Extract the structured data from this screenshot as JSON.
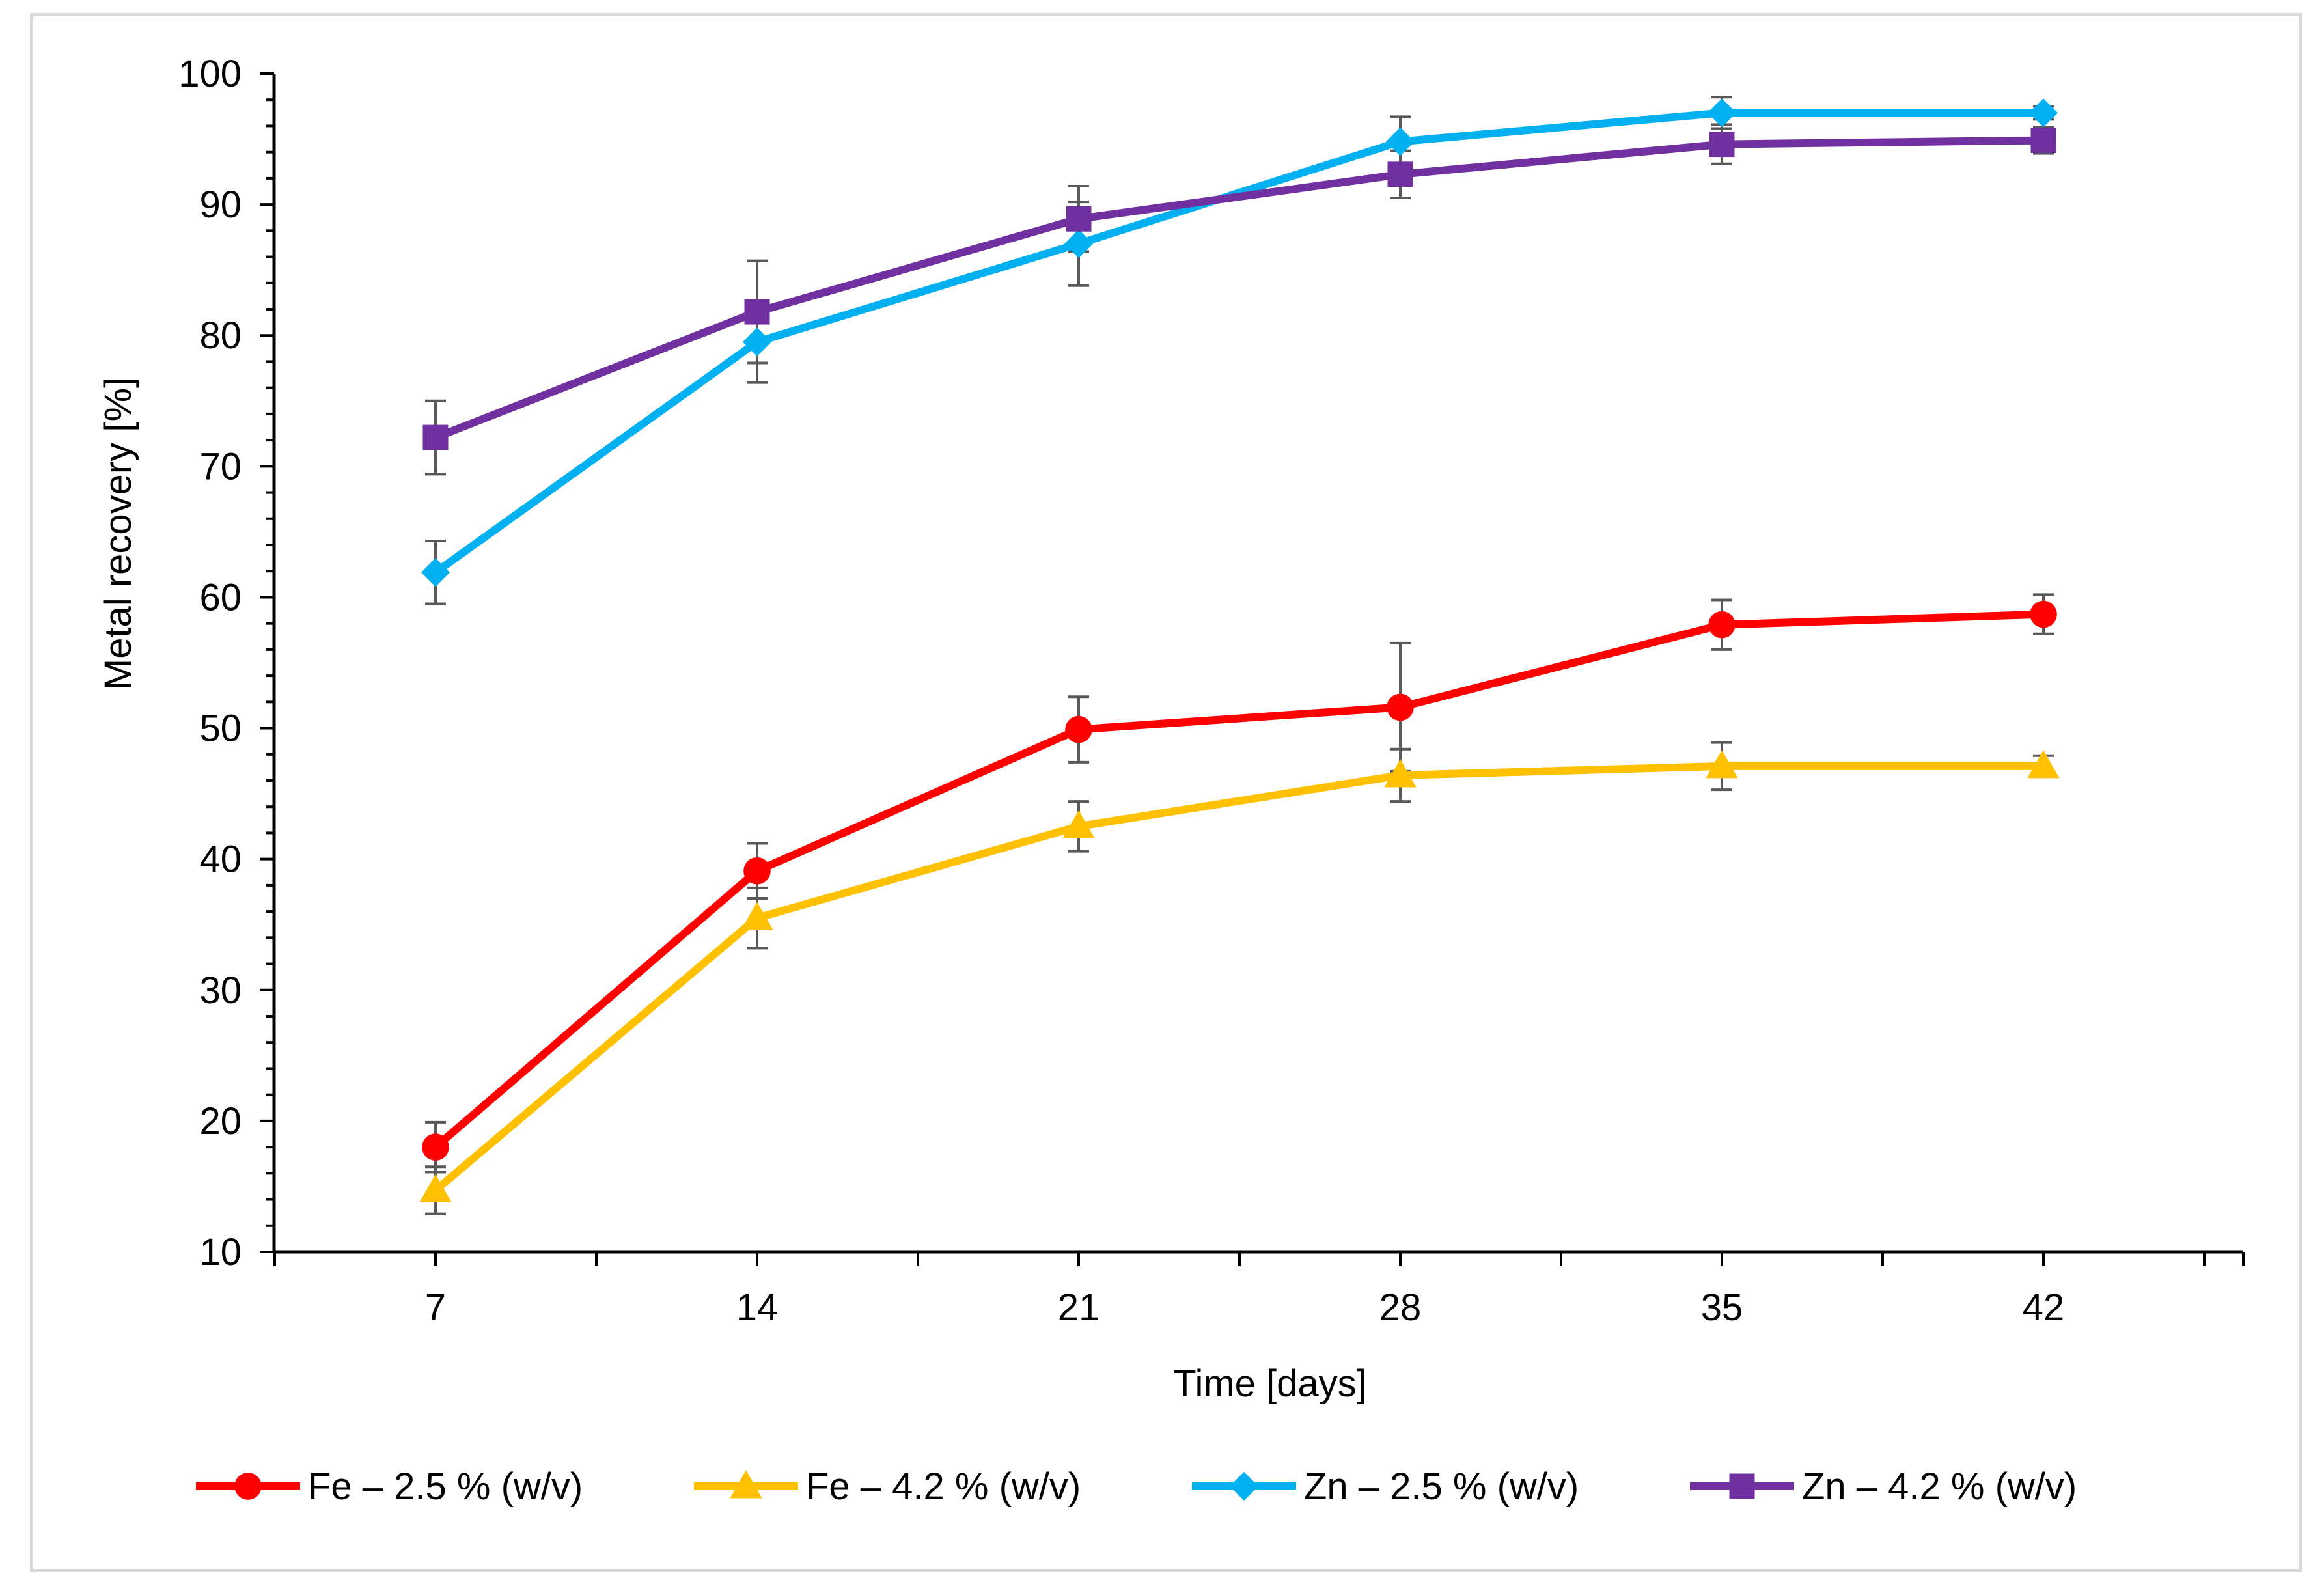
{
  "chart_data": {
    "type": "line",
    "title": "",
    "xlabel": "Time [days]",
    "ylabel": "Metal recovery [%]",
    "categories": [
      "7",
      "14",
      "21",
      "28",
      "35",
      "42"
    ],
    "x": [
      7,
      14,
      21,
      28,
      35,
      42
    ],
    "ylim": [
      10,
      100
    ],
    "yticks": [
      10,
      20,
      30,
      40,
      50,
      60,
      70,
      80,
      90,
      100
    ],
    "grid": false,
    "legend_position": "bottom",
    "error_bar_color": "#595959",
    "series": [
      {
        "name": "Fe – 2.5 % (w/v)",
        "color": "#ff0000",
        "marker": "circle",
        "values": [
          18.0,
          39.1,
          49.9,
          51.6,
          57.9,
          58.7
        ],
        "errors": [
          1.9,
          2.1,
          2.5,
          4.9,
          1.9,
          1.5
        ]
      },
      {
        "name": "Fe – 4.2 % (w/v)",
        "color": "#ffc000",
        "marker": "triangle",
        "values": [
          14.7,
          35.5,
          42.5,
          46.4,
          47.1,
          47.1
        ],
        "errors": [
          1.8,
          2.3,
          1.9,
          2.0,
          1.8,
          0.8
        ]
      },
      {
        "name": "Zn – 2.5 % (w/v)",
        "color": "#00b0f0",
        "marker": "diamond",
        "values": [
          61.9,
          79.5,
          87.0,
          94.8,
          97.0,
          97.0
        ],
        "errors": [
          2.4,
          3.1,
          3.2,
          1.9,
          1.2,
          0.5
        ]
      },
      {
        "name": "Zn – 4.2 % (w/v)",
        "color": "#7030a0",
        "marker": "square",
        "values": [
          72.2,
          81.8,
          88.9,
          92.3,
          94.6,
          94.9
        ],
        "errors": [
          2.8,
          3.9,
          2.5,
          1.8,
          1.5,
          1.0
        ]
      }
    ]
  }
}
